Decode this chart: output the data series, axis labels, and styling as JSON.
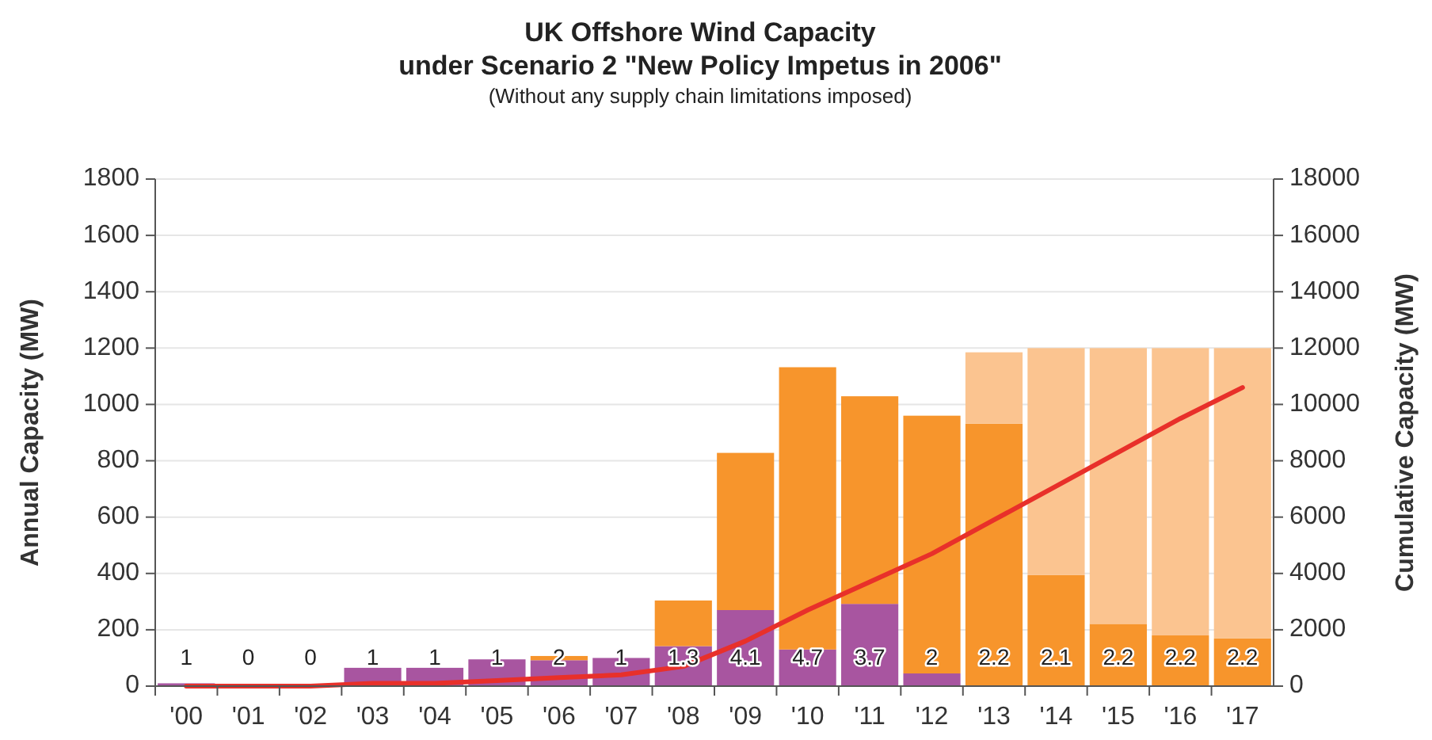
{
  "chart_data": {
    "type": "bar",
    "title": "UK Offshore Wind Capacity\nunder Scenario 2 \"New Policy Impetus in 2006\"",
    "subtitle": "(Without any supply chain limitations imposed)",
    "ylabel": "Annual Capacity (MW)",
    "y2label": "Cumulative Capacity (MW)",
    "categories": [
      "'00",
      "'01",
      "'02",
      "'03",
      "'04",
      "'05",
      "'06",
      "'07",
      "'08",
      "'09",
      "'10",
      "'11",
      "'12",
      "'13",
      "'14",
      "'15",
      "'16",
      "'17"
    ],
    "stacked": true,
    "series": [
      {
        "color": "#a855a0",
        "values": [
          10,
          0,
          0,
          65,
          65,
          95,
          92,
          100,
          142,
          270,
          130,
          292,
          45,
          0,
          0,
          0,
          0,
          0
        ]
      },
      {
        "color": "#f7952c",
        "values": [
          0,
          0,
          0,
          0,
          0,
          0,
          15,
          0,
          162,
          558,
          1002,
          737,
          915,
          932,
          394,
          221,
          180,
          169
        ]
      },
      {
        "color": "#fbc490",
        "values": [
          0,
          0,
          0,
          0,
          0,
          0,
          0,
          0,
          0,
          0,
          0,
          0,
          0,
          253,
          806,
          979,
          1020,
          1031
        ]
      },
      {
        "type": "line",
        "axis": "y2",
        "color": "#e8302a",
        "values": [
          0,
          0,
          0,
          100,
          100,
          200,
          300,
          400,
          700,
          1600,
          2700,
          3700,
          4700,
          5900,
          7100,
          8300,
          9500,
          10600
        ]
      }
    ],
    "ylim": [
      0,
      1800
    ],
    "yticks": [
      0,
      200,
      400,
      600,
      800,
      1000,
      1200,
      1400,
      1600,
      1800
    ],
    "y2lim": [
      0,
      18000
    ],
    "y2ticks": [
      0,
      2000,
      4000,
      6000,
      8000,
      10000,
      12000,
      14000,
      16000,
      18000
    ],
    "grid": "y",
    "marker": "none",
    "line_style": "solid",
    "annotations": [
      "1",
      "0",
      "0",
      "1",
      "1",
      "1",
      "2",
      "1",
      "1.3",
      "4.1",
      "4.7",
      "3.7",
      "2",
      "2.2",
      "2.1",
      "2.2",
      "2.2",
      "2.2"
    ]
  }
}
